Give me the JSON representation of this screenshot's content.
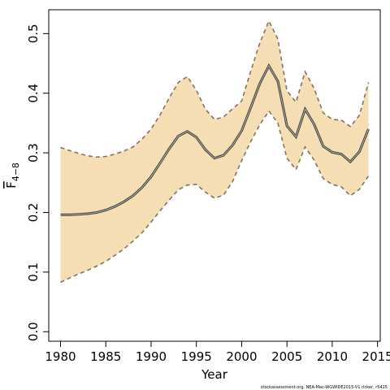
{
  "chart_data": {
    "type": "area",
    "title": "",
    "xlabel": "Year",
    "ylabel": {
      "main": "F",
      "sub": "4−8"
    },
    "xlim": [
      1978.7,
      2015.3
    ],
    "ylim": [
      -0.016,
      0.54
    ],
    "xticks": [
      "1980",
      "1985",
      "1990",
      "1995",
      "2000",
      "2005",
      "2010",
      "2015"
    ],
    "yticks": [
      "0.0",
      "0.1",
      "0.2",
      "0.3",
      "0.4",
      "0.5"
    ],
    "grid": false,
    "x": [
      1980,
      1981,
      1982,
      1983,
      1984,
      1985,
      1986,
      1987,
      1988,
      1989,
      1990,
      1991,
      1992,
      1993,
      1994,
      1995,
      1996,
      1997,
      1998,
      1999,
      2000,
      2001,
      2002,
      2003,
      2004,
      2005,
      2006,
      2007,
      2008,
      2009,
      2010,
      2011,
      2012,
      2013,
      2014
    ],
    "series": [
      {
        "role": "estimate",
        "values": [
          0.196,
          0.196,
          0.197,
          0.198,
          0.2,
          0.204,
          0.21,
          0.218,
          0.228,
          0.242,
          0.26,
          0.283,
          0.307,
          0.328,
          0.336,
          0.326,
          0.305,
          0.291,
          0.296,
          0.313,
          0.337,
          0.376,
          0.416,
          0.446,
          0.42,
          0.345,
          0.327,
          0.373,
          0.348,
          0.311,
          0.301,
          0.298,
          0.285,
          0.302,
          0.34
        ]
      },
      {
        "role": "upper",
        "values": [
          0.309,
          0.304,
          0.299,
          0.295,
          0.293,
          0.294,
          0.298,
          0.303,
          0.31,
          0.323,
          0.34,
          0.364,
          0.392,
          0.418,
          0.428,
          0.405,
          0.373,
          0.356,
          0.36,
          0.374,
          0.387,
          0.437,
          0.484,
          0.521,
          0.491,
          0.404,
          0.385,
          0.436,
          0.408,
          0.367,
          0.356,
          0.355,
          0.344,
          0.363,
          0.418
        ]
      },
      {
        "role": "lower",
        "values": [
          0.083,
          0.09,
          0.097,
          0.103,
          0.11,
          0.118,
          0.128,
          0.139,
          0.152,
          0.166,
          0.184,
          0.203,
          0.221,
          0.238,
          0.246,
          0.247,
          0.234,
          0.224,
          0.229,
          0.252,
          0.287,
          0.319,
          0.347,
          0.37,
          0.35,
          0.291,
          0.272,
          0.31,
          0.288,
          0.257,
          0.247,
          0.243,
          0.228,
          0.239,
          0.261
        ]
      }
    ],
    "colors": {
      "band": "#f5deb3",
      "estimate": "#444444",
      "bounds": "#7f7464"
    },
    "footnote": "stockassessment.org, NEA-Mac-WGWIDE2015-V1 ricker, r5415"
  }
}
